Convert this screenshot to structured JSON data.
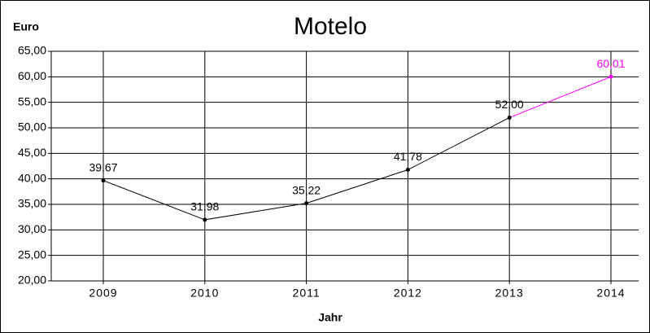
{
  "chart_data": {
    "type": "line",
    "title": "Motelo",
    "y_label": "Euro",
    "x_label": "Jahr",
    "categories": [
      "2009",
      "2010",
      "2011",
      "2012",
      "2013",
      "2014"
    ],
    "series": [
      {
        "color": "#000000",
        "point_colors": [
          "#000000",
          "#000000",
          "#000000",
          "#000000",
          "#000000",
          "#ff00ff"
        ],
        "values": [
          39.67,
          31.98,
          35.22,
          41.78,
          52.0,
          60.01
        ],
        "value_labels": [
          "39,67",
          "31,98",
          "35,22",
          "41,78",
          "52,00",
          "60,01"
        ]
      }
    ],
    "ylim": [
      20,
      65
    ],
    "yticks": [
      {
        "value": 20,
        "label": "20,00"
      },
      {
        "value": 25,
        "label": "25,00"
      },
      {
        "value": 30,
        "label": "30,00"
      },
      {
        "value": 35,
        "label": "35,00"
      },
      {
        "value": 40,
        "label": "40,00"
      },
      {
        "value": 45,
        "label": "45,00"
      },
      {
        "value": 50,
        "label": "50,00"
      },
      {
        "value": 55,
        "label": "55,00"
      },
      {
        "value": 60,
        "label": "60,00"
      },
      {
        "value": 65,
        "label": "65,00"
      }
    ],
    "grid": true
  }
}
